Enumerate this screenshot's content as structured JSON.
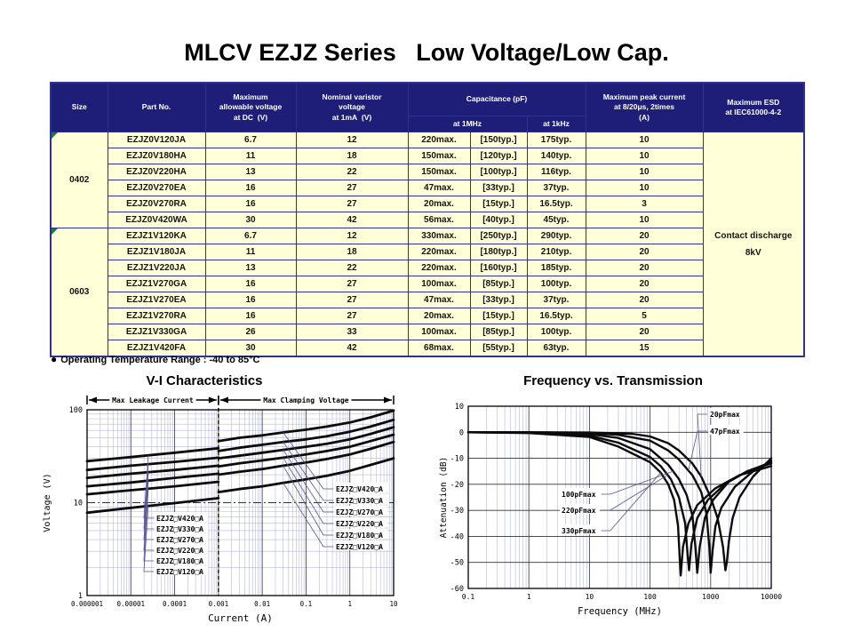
{
  "page": {
    "title": "MLCV EZJZ Series   Low Voltage/Low Cap."
  },
  "colors": {
    "header_bg": "#1e1e78",
    "border": "#2e3192",
    "row_bg": "#ffffd8",
    "marker_green": "#1c7a40"
  },
  "table": {
    "headers": {
      "size": "Size",
      "part": "Part No.",
      "max_voltage": "Maximum\nallowable voltage\nat DC  (V)",
      "varistor_voltage": "Nominal varistor\nvoltage\nat 1mA  (V)",
      "capacitance": "Capacitance (pF)",
      "at_1mhz": "at 1MHz",
      "at_1khz": "at 1kHz",
      "peak_current": "Maximum peak current\nat 8/20μs, 2times\n(A)",
      "esd": "Maximum ESD\nat IEC61000-4-2"
    },
    "groups": [
      {
        "size": "0402",
        "rows": [
          [
            "EZJZ0V120JA",
            "6.7",
            "12",
            "220max.",
            "[150typ.]",
            "175typ.",
            "10"
          ],
          [
            "EZJZ0V180HA",
            "11",
            "18",
            "150max.",
            "[120typ.]",
            "140typ.",
            "10"
          ],
          [
            "EZJZ0V220HA",
            "13",
            "22",
            "150max.",
            "[100typ.]",
            "116typ.",
            "10"
          ],
          [
            "EZJZ0V270EA",
            "16",
            "27",
            "47max.",
            "[33typ.]",
            "37typ.",
            "10"
          ],
          [
            "EZJZ0V270RA",
            "16",
            "27",
            "20max.",
            "[15typ.]",
            "16.5typ.",
            "3"
          ],
          [
            "EZJZ0V420WA",
            "30",
            "42",
            "56max.",
            "[40typ.]",
            "45typ.",
            "10"
          ]
        ]
      },
      {
        "size": "0603",
        "rows": [
          [
            "EZJZ1V120KA",
            "6.7",
            "12",
            "330max.",
            "[250typ.]",
            "290typ.",
            "20"
          ],
          [
            "EZJZ1V180JA",
            "11",
            "18",
            "220max.",
            "[180typ.]",
            "210typ.",
            "20"
          ],
          [
            "EZJZ1V220JA",
            "13",
            "22",
            "220max.",
            "[160typ.]",
            "185typ.",
            "20"
          ],
          [
            "EZJZ1V270GA",
            "16",
            "27",
            "100max.",
            "[85typ.]",
            "100typ.",
            "20"
          ],
          [
            "EZJZ1V270EA",
            "16",
            "27",
            "47max.",
            "[33typ.]",
            "37typ.",
            "20"
          ],
          [
            "EZJZ1V270RA",
            "16",
            "27",
            "20max.",
            "[15typ.]",
            "16.5typ.",
            "5"
          ],
          [
            "EZJZ1V330GA",
            "26",
            "33",
            "100max.",
            "[85typ.]",
            "100typ.",
            "20"
          ],
          [
            "EZJZ1V420FA",
            "30",
            "42",
            "68max.",
            "[55typ.]",
            "63typ.",
            "15"
          ]
        ]
      }
    ],
    "esd_cell": "Contact discharge\n8kV"
  },
  "note": {
    "bullet": "●",
    "text": "Operating Temperature Range : -40 to 85°C"
  },
  "chart_data": [
    {
      "id": "vi",
      "type": "line",
      "title": "V-I Characteristics",
      "xlabel": "Current (A)",
      "ylabel": "Voltage (V)",
      "x_scale": "log",
      "y_scale": "log",
      "xlim": [
        1e-06,
        10
      ],
      "ylim": [
        1,
        100
      ],
      "x_ticks": [
        "0.000001",
        "0.00001",
        "0.0001",
        "0.001",
        "0.01",
        "0.1",
        "1",
        "10"
      ],
      "y_ticks": [
        "1",
        "10",
        "100"
      ],
      "grid": "log minor on, majors on",
      "regions": [
        {
          "label": "Max Leakage Current",
          "x0": 1e-06,
          "x1": 0.001
        },
        {
          "label": "Max Clamping Voltage",
          "x0": 0.001,
          "x1": 10
        }
      ],
      "divider_x": 0.001,
      "series": [
        {
          "name": "EZJZ□V420□A",
          "leakage": [
            [
              1e-06,
              28
            ],
            [
              1e-05,
              31
            ],
            [
              0.0001,
              34.5
            ],
            [
              0.001,
              38.5
            ]
          ],
          "clamping": [
            [
              0.001,
              46
            ],
            [
              0.003,
              50
            ],
            [
              0.01,
              53
            ],
            [
              0.03,
              57
            ],
            [
              0.1,
              61
            ],
            [
              0.3,
              66
            ],
            [
              1,
              73
            ],
            [
              3,
              83
            ],
            [
              10,
              98
            ]
          ]
        },
        {
          "name": "EZJZ□V330□A",
          "leakage": [
            [
              1e-06,
              22.5
            ],
            [
              1e-05,
              25
            ],
            [
              0.0001,
              27.5
            ],
            [
              0.001,
              30.5
            ]
          ],
          "clamping": [
            [
              0.001,
              36
            ],
            [
              0.003,
              39
            ],
            [
              0.01,
              42
            ],
            [
              0.03,
              45
            ],
            [
              0.1,
              48
            ],
            [
              0.3,
              52
            ],
            [
              1,
              58
            ],
            [
              3,
              66
            ],
            [
              10,
              78
            ]
          ]
        },
        {
          "name": "EZJZ□V270□A",
          "leakage": [
            [
              1e-06,
              18.5
            ],
            [
              1e-05,
              20.5
            ],
            [
              0.0001,
              22.5
            ],
            [
              0.001,
              25
            ]
          ],
          "clamping": [
            [
              0.001,
              30
            ],
            [
              0.003,
              32
            ],
            [
              0.01,
              34.5
            ],
            [
              0.03,
              37
            ],
            [
              0.1,
              40
            ],
            [
              0.3,
              43
            ],
            [
              1,
              48
            ],
            [
              3,
              55
            ],
            [
              10,
              65
            ]
          ]
        },
        {
          "name": "EZJZ□V220□A",
          "leakage": [
            [
              1e-06,
              15
            ],
            [
              1e-05,
              16.5
            ],
            [
              0.0001,
              18.5
            ],
            [
              0.001,
              20.5
            ]
          ],
          "clamping": [
            [
              0.001,
              24.5
            ],
            [
              0.003,
              26.5
            ],
            [
              0.01,
              28.5
            ],
            [
              0.03,
              30.5
            ],
            [
              0.1,
              33
            ],
            [
              0.3,
              36
            ],
            [
              1,
              40
            ],
            [
              3,
              46
            ],
            [
              10,
              54
            ]
          ]
        },
        {
          "name": "EZJZ□V180□A",
          "leakage": [
            [
              1e-06,
              12.3
            ],
            [
              1e-05,
              13.6
            ],
            [
              0.0001,
              15
            ],
            [
              0.001,
              16.8
            ]
          ],
          "clamping": [
            [
              0.001,
              20
            ],
            [
              0.003,
              21.5
            ],
            [
              0.01,
              23
            ],
            [
              0.03,
              25
            ],
            [
              0.1,
              27
            ],
            [
              0.3,
              29.5
            ],
            [
              1,
              33
            ],
            [
              3,
              38
            ],
            [
              10,
              45
            ]
          ]
        },
        {
          "name": "EZJZ□V120□A",
          "leakage": [
            [
              1e-06,
              7.8
            ],
            [
              1e-05,
              8.8
            ],
            [
              0.0001,
              9.9
            ],
            [
              0.001,
              11.2
            ]
          ],
          "clamping": [
            [
              0.001,
              13
            ],
            [
              0.003,
              14
            ],
            [
              0.01,
              15
            ],
            [
              0.03,
              16.3
            ],
            [
              0.1,
              17.8
            ],
            [
              0.3,
              19.5
            ],
            [
              1,
              22
            ],
            [
              3,
              25.5
            ],
            [
              10,
              30
            ]
          ]
        }
      ]
    },
    {
      "id": "freq",
      "type": "line",
      "title": "Frequency vs. Transmission",
      "xlabel": "Frequency (MHz)",
      "ylabel": "Attenuation (dB)",
      "x_scale": "log",
      "y_scale": "linear",
      "xlim": [
        0.1,
        10000
      ],
      "ylim": [
        10,
        -60
      ],
      "x_ticks": [
        "0.1",
        "1",
        "10",
        "100",
        "1000",
        "10000"
      ],
      "y_ticks": [
        "10",
        "0",
        "-10",
        "-20",
        "-30",
        "-40",
        "-50",
        "-60"
      ],
      "grid": "log minor on, majors on",
      "series": [
        {
          "name": "20pFmax",
          "points": [
            [
              0.1,
              0
            ],
            [
              1,
              0
            ],
            [
              10,
              -0.1
            ],
            [
              50,
              -0.6
            ],
            [
              100,
              -1.6
            ],
            [
              200,
              -4.2
            ],
            [
              300,
              -7
            ],
            [
              500,
              -12
            ],
            [
              700,
              -17
            ],
            [
              1000,
              -25
            ],
            [
              1300,
              -33
            ],
            [
              1600,
              -44
            ],
            [
              1750,
              -53
            ],
            [
              1850,
              -50
            ],
            [
              2000,
              -42
            ],
            [
              2300,
              -33
            ],
            [
              3000,
              -25
            ],
            [
              5000,
              -17
            ],
            [
              10000,
              -10
            ]
          ]
        },
        {
          "name": "47pFmax",
          "points": [
            [
              0.1,
              0
            ],
            [
              1,
              0
            ],
            [
              10,
              -0.3
            ],
            [
              30,
              -1
            ],
            [
              100,
              -3.2
            ],
            [
              200,
              -7
            ],
            [
              300,
              -10.5
            ],
            [
              500,
              -16.5
            ],
            [
              700,
              -23
            ],
            [
              850,
              -31
            ],
            [
              950,
              -44
            ],
            [
              1000,
              -54
            ],
            [
              1080,
              -45
            ],
            [
              1200,
              -36
            ],
            [
              1500,
              -29
            ],
            [
              2500,
              -21
            ],
            [
              5000,
              -15
            ],
            [
              10000,
              -11
            ]
          ]
        },
        {
          "name": "100pFmax",
          "points": [
            [
              0.1,
              0
            ],
            [
              1,
              -0.1
            ],
            [
              10,
              -0.7
            ],
            [
              30,
              -2.2
            ],
            [
              100,
              -6.5
            ],
            [
              200,
              -12.5
            ],
            [
              300,
              -18
            ],
            [
              400,
              -24
            ],
            [
              500,
              -32
            ],
            [
              560,
              -44
            ],
            [
              600,
              -54
            ],
            [
              660,
              -44
            ],
            [
              800,
              -33
            ],
            [
              1100,
              -26
            ],
            [
              2000,
              -19
            ],
            [
              4000,
              -15
            ],
            [
              10000,
              -11.5
            ]
          ]
        },
        {
          "name": "220pFmax",
          "points": [
            [
              0.1,
              0
            ],
            [
              1,
              -0.2
            ],
            [
              10,
              -1.3
            ],
            [
              30,
              -4
            ],
            [
              100,
              -9.5
            ],
            [
              150,
              -13
            ],
            [
              220,
              -18
            ],
            [
              300,
              -25
            ],
            [
              380,
              -35
            ],
            [
              420,
              -48
            ],
            [
              440,
              -53
            ],
            [
              480,
              -43
            ],
            [
              600,
              -33
            ],
            [
              900,
              -26
            ],
            [
              1800,
              -19.5
            ],
            [
              4000,
              -15
            ],
            [
              10000,
              -12
            ]
          ]
        },
        {
          "name": "330pFmax",
          "points": [
            [
              0.1,
              0
            ],
            [
              1,
              -0.3
            ],
            [
              10,
              -1.8
            ],
            [
              30,
              -5.5
            ],
            [
              100,
              -11.5
            ],
            [
              150,
              -15.5
            ],
            [
              200,
              -20
            ],
            [
              250,
              -26
            ],
            [
              290,
              -36
            ],
            [
              310,
              -49
            ],
            [
              320,
              -55
            ],
            [
              350,
              -44
            ],
            [
              430,
              -35
            ],
            [
              600,
              -28
            ],
            [
              1200,
              -21.5
            ],
            [
              3000,
              -16.5
            ],
            [
              10000,
              -13
            ]
          ]
        }
      ]
    }
  ]
}
